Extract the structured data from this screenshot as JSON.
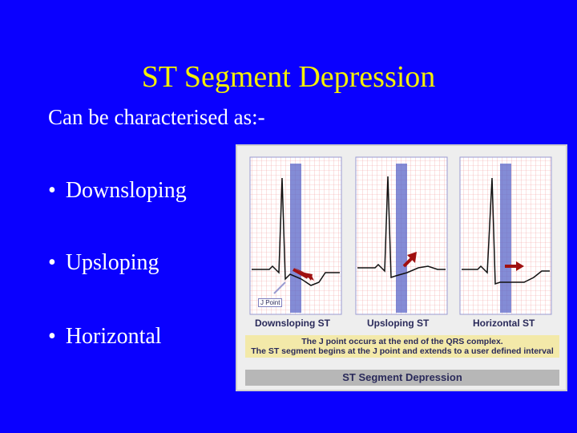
{
  "slide": {
    "title": "ST Segment Depression",
    "subtitle": "Can be characterised as:-",
    "bullets": [
      "Downsloping",
      "Upsloping",
      "Horizontal"
    ],
    "bullet_symbol": "•"
  },
  "figure": {
    "panels": [
      {
        "label": "Downsloping ST",
        "arrow_direction": "down-right"
      },
      {
        "label": "Upsloping ST",
        "arrow_direction": "up-right"
      },
      {
        "label": "Horizontal ST",
        "arrow_direction": "right"
      }
    ],
    "jpoint_label": "J Point",
    "note_lines": [
      "The J point occurs at the end of the QRS complex.",
      "The ST segment begins at the J point and extends to a user defined interval"
    ],
    "caption": "ST Segment Depression"
  },
  "colors": {
    "background": "#0a00ff",
    "title": "#f5f000",
    "text": "#ffffff",
    "ecg_grid": "#f2a0a0",
    "highlight_band": "#5a66c8",
    "arrow": "#a01010"
  }
}
